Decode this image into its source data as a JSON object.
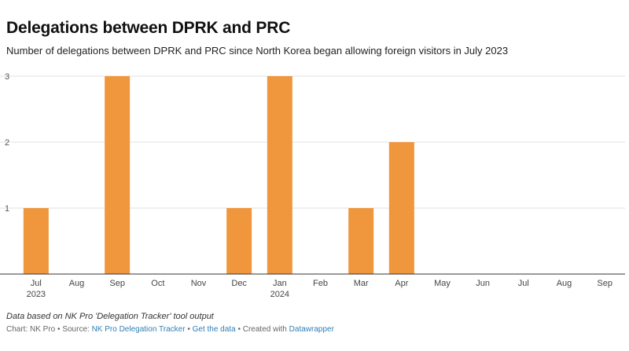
{
  "header": {
    "title": "Delegations between DPRK and PRC",
    "subtitle": "Number of delegations between DPRK and PRC since North Korea began allowing foreign visitors in July 2023"
  },
  "chart_data": {
    "type": "bar",
    "categories": [
      "Jul",
      "Aug",
      "Sep",
      "Oct",
      "Nov",
      "Dec",
      "Jan",
      "Feb",
      "Mar",
      "Apr",
      "May",
      "Jun",
      "Jul",
      "Aug",
      "Sep"
    ],
    "year_labels": [
      "2023",
      "",
      "",
      "",
      "",
      "",
      "2024",
      "",
      "",
      "",
      "",
      "",
      "",
      "",
      ""
    ],
    "values": [
      1,
      0,
      3,
      0,
      0,
      1,
      3,
      0,
      1,
      2,
      0,
      0,
      0,
      0,
      0
    ],
    "yticks": [
      1,
      2,
      3
    ],
    "ylim": [
      0,
      3
    ],
    "bar_color": "#f0963c",
    "grid": true,
    "legend": "none",
    "xlabel": "",
    "ylabel": ""
  },
  "footer": {
    "notes": "Data based on NK Pro 'Delegation Tracker' tool output",
    "chart_label": "Chart: NK Pro",
    "source_prefix": "Source:",
    "source_link": "NK Pro Delegation Tracker",
    "get_data": "Get the data",
    "created_with": "Created with",
    "datawrapper": "Datawrapper",
    "separator": "•"
  }
}
